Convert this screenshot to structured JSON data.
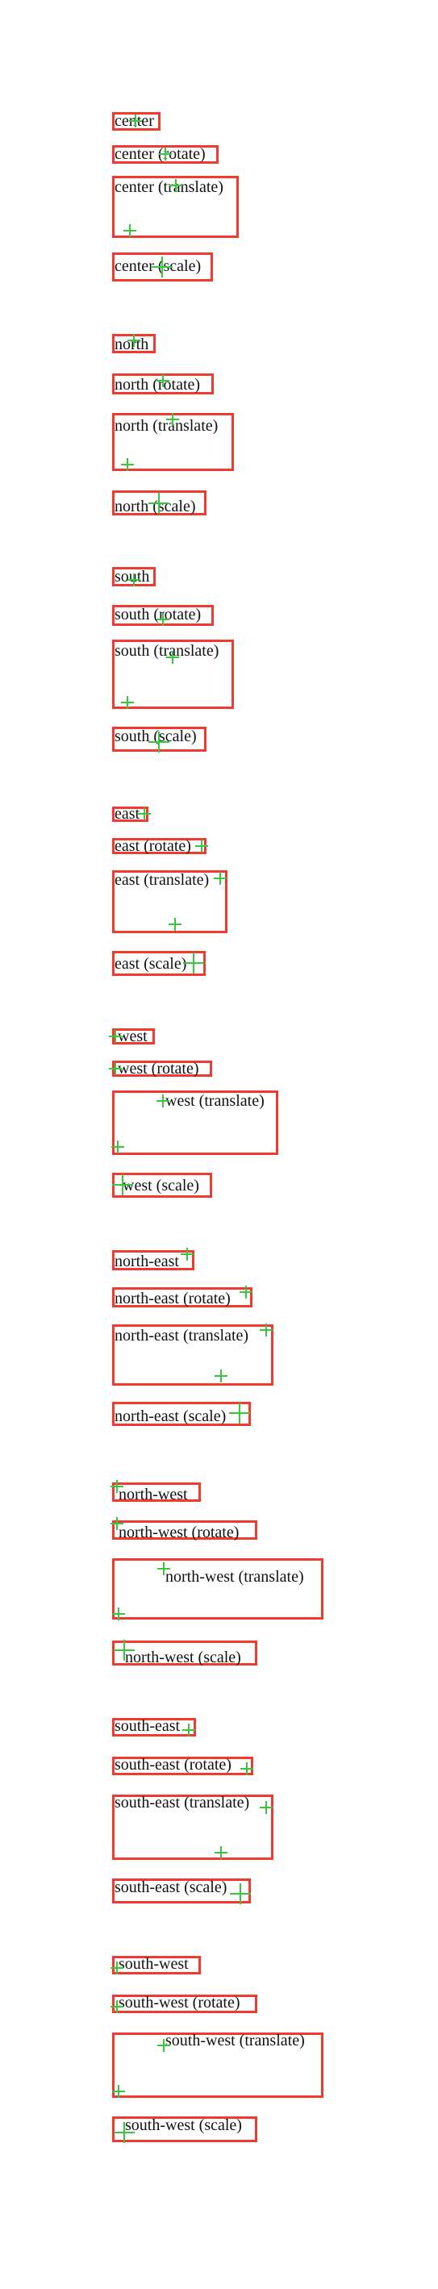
{
  "labels": {
    "center": "center",
    "center_rotate": "center (rotate)",
    "center_translate": "center (translate)",
    "center_scale": "center (scale)",
    "north": "north",
    "north_rotate": "north (rotate)",
    "north_translate": "north (translate)",
    "north_scale": "north (scale)",
    "south": "south",
    "south_rotate": "south (rotate)",
    "south_translate": "south (translate)",
    "south_scale": "south (scale)",
    "east": "east",
    "east_rotate": "east (rotate)",
    "east_translate": "east (translate)",
    "east_scale": "east (scale)",
    "west": "west",
    "west_rotate": "west (rotate)",
    "west_translate": "west (translate)",
    "west_scale": "west (scale)",
    "north_east": "north-east",
    "north_east_rotate": "north-east (rotate)",
    "north_east_translate": "north-east (translate)",
    "north_east_scale": "north-east (scale)",
    "north_west": "north-west",
    "north_west_rotate": "north-west (rotate)",
    "north_west_translate": "north-west (translate)",
    "north_west_scale": "north-west (scale)",
    "south_east": "south-east",
    "south_east_rotate": "south-east (rotate)",
    "south_east_translate": "south-east (translate)",
    "south_east_scale": "south-east (scale)",
    "south_west": "south-west",
    "south_west_rotate": "south-west (rotate)",
    "south_west_translate": "south-west (translate)",
    "south_west_scale": "south-west (scale)"
  },
  "colors": {
    "box_border": "#ee3a2f",
    "origin_marker": "#39c63e"
  }
}
